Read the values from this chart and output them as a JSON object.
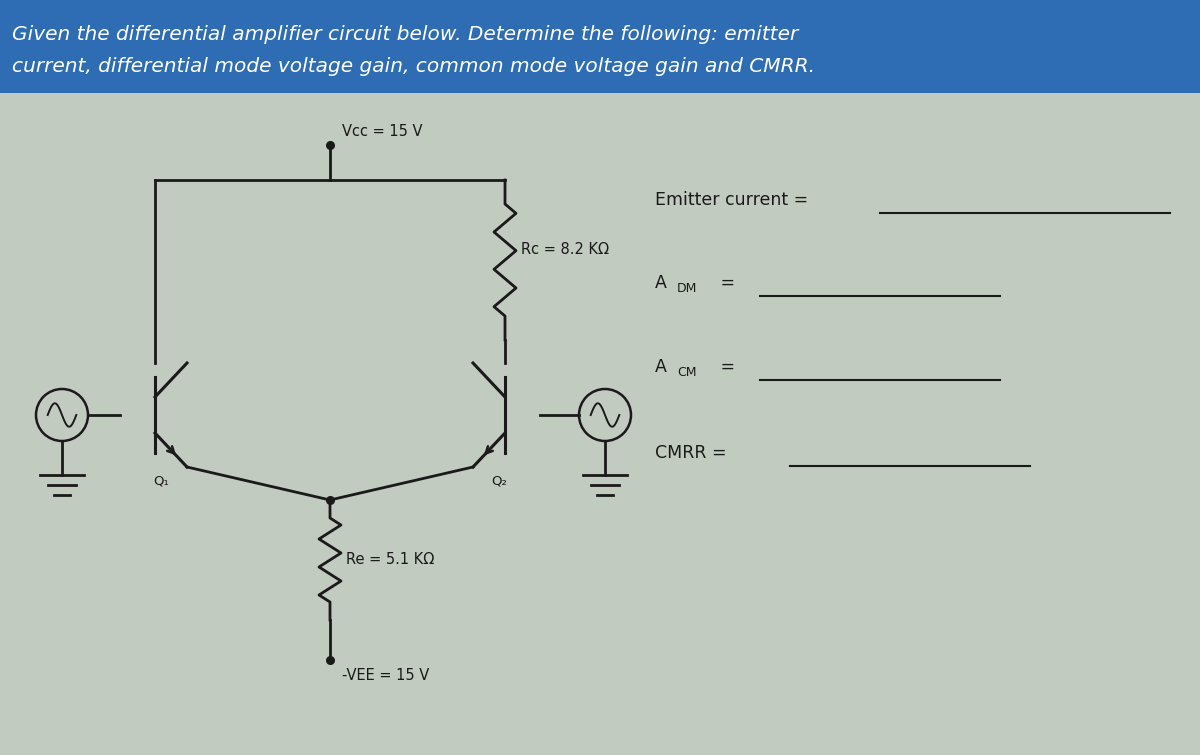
{
  "title_line1": "Given the differential amplifier circuit below. Determine the following: emitter",
  "title_line2": "current, differential mode voltage gain, common mode voltage gain and CMRR.",
  "title_bg_color": "#2E6DB4",
  "title_text_color": "#FFFFFF",
  "bg_color": "#C2CBBF",
  "circuit_color": "#1A1A1A",
  "label_color": "#1A1A1A",
  "vcc_label": "Vcc = 15 V",
  "rc_label": "Rc = 8.2 KΩ",
  "re_label": "Re = 5.1 KΩ",
  "vee_label": "-VEE = 15 V",
  "q1_label": "Q₁",
  "q2_label": "Q₂",
  "emitter_current_label": "Emitter current =",
  "adm_label": "A",
  "adm_sub": "DM",
  "acm_label": "A",
  "acm_sub": "CM",
  "cmrr_label": "CMRR =",
  "fig_width": 12.0,
  "fig_height": 7.55
}
